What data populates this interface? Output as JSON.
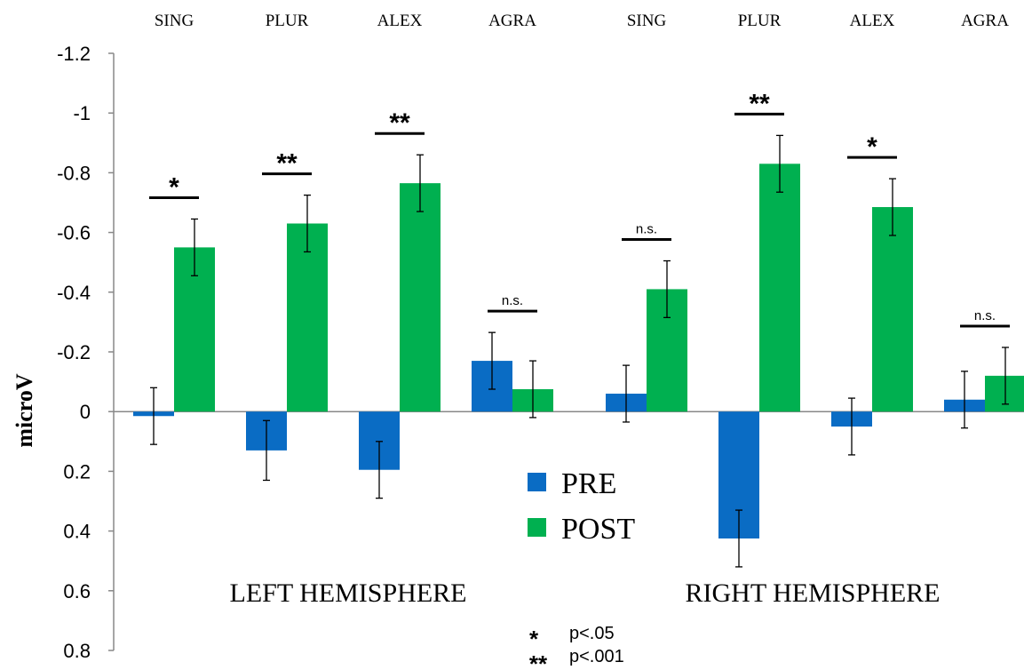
{
  "chart_data": {
    "type": "bar",
    "ylabel": "microV",
    "ylim": [
      0.8,
      -1.2
    ],
    "y_inverted": true,
    "yticks": [
      "-1.2",
      "-1",
      "-0.8",
      "-0.6",
      "-0.4",
      "-0.2",
      "0",
      "0.2",
      "0.4",
      "0.6",
      "0.8"
    ],
    "grid": false,
    "legend_position": "center",
    "colors": {
      "PRE": "#0A6CC4",
      "POST": "#00B050"
    },
    "groups": [
      {
        "label": "LEFT HEMISPHERE",
        "categories": [
          "SING",
          "PLUR",
          "ALEX",
          "AGRA"
        ],
        "significance": [
          "*",
          "**",
          "**",
          "n.s."
        ],
        "series": [
          {
            "name": "PRE",
            "values": [
              0.015,
              0.13,
              0.195,
              -0.17
            ],
            "errors": [
              0.095,
              0.1,
              0.095,
              0.095
            ]
          },
          {
            "name": "POST",
            "values": [
              -0.55,
              -0.63,
              -0.765,
              -0.075
            ],
            "errors": [
              0.095,
              0.095,
              0.095,
              0.095
            ]
          }
        ]
      },
      {
        "label": "RIGHT HEMISPHERE",
        "categories": [
          "SING",
          "PLUR",
          "ALEX",
          "AGRA"
        ],
        "significance": [
          "n.s.",
          "**",
          "*",
          "n.s."
        ],
        "series": [
          {
            "name": "PRE",
            "values": [
              -0.06,
              0.425,
              0.05,
              -0.04
            ],
            "errors": [
              0.095,
              0.095,
              0.095,
              0.095
            ]
          },
          {
            "name": "POST",
            "values": [
              -0.41,
              -0.83,
              -0.685,
              -0.12
            ],
            "errors": [
              0.095,
              0.095,
              0.095,
              0.095
            ]
          }
        ]
      }
    ],
    "legend": [
      "PRE",
      "POST"
    ],
    "notes": [
      {
        "symbol": "*",
        "text": "p<.05"
      },
      {
        "symbol": "**",
        "text": "p<.001"
      }
    ]
  }
}
